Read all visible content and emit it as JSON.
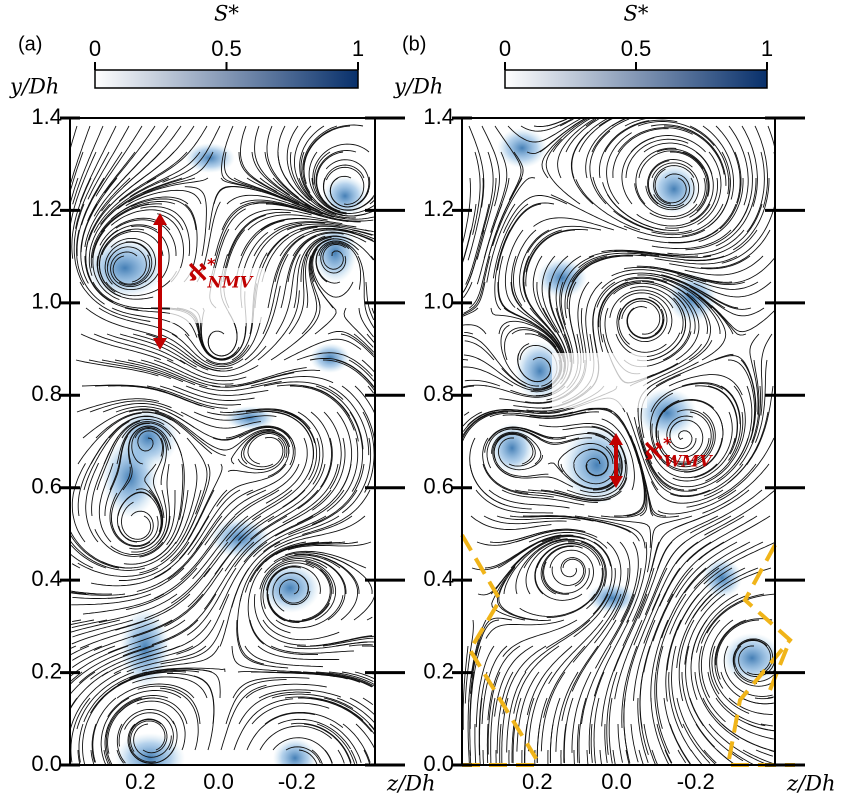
{
  "chart_data": [
    {
      "type": "streamline",
      "panel_label": "(a)",
      "ylabel": "y/Dh",
      "xlabel": "z/Dh",
      "xlim": [
        0.38,
        -0.4
      ],
      "ylim": [
        0,
        1.4
      ],
      "xticks": [
        {
          "value": 0.2,
          "label": "0.2"
        },
        {
          "value": 0,
          "label": "0.0"
        },
        {
          "value": -0.2,
          "label": "-0.2"
        }
      ],
      "yticks": [
        {
          "value": 0,
          "label": "0.0"
        },
        {
          "value": 0.2,
          "label": "0.2"
        },
        {
          "value": 0.4,
          "label": "0.4"
        },
        {
          "value": 0.6,
          "label": "0.6"
        },
        {
          "value": 0.8,
          "label": "0.8"
        },
        {
          "value": 1,
          "label": "1.0"
        },
        {
          "value": 1.2,
          "label": "1.2"
        },
        {
          "value": 1.4,
          "label": "1.4"
        }
      ],
      "colorbar": {
        "label": "S*",
        "clim": [
          0,
          1
        ],
        "ticks": [
          0,
          0.5,
          1
        ],
        "cmap": [
          "#ffffff",
          "#08306b"
        ]
      },
      "annotation": {
        "symbol": "ℵ",
        "sup": "*",
        "sub": "NMV",
        "color": "#c00000"
      }
    },
    {
      "type": "streamline",
      "panel_label": "(b)",
      "ylabel": "y/Dh",
      "xlabel": "z/Dh",
      "xlim": [
        0.39,
        -0.4
      ],
      "ylim": [
        0,
        1.4
      ],
      "xticks": [
        {
          "value": 0.2,
          "label": "0.2"
        },
        {
          "value": 0,
          "label": "0.0"
        },
        {
          "value": -0.2,
          "label": "-0.2"
        }
      ],
      "yticks": [
        {
          "value": 0,
          "label": "0.0"
        },
        {
          "value": 0.2,
          "label": "0.2"
        },
        {
          "value": 0.4,
          "label": "0.4"
        },
        {
          "value": 0.6,
          "label": "0.6"
        },
        {
          "value": 0.8,
          "label": "0.8"
        },
        {
          "value": 1,
          "label": "1.0"
        },
        {
          "value": 1.2,
          "label": "1.2"
        },
        {
          "value": 1.4,
          "label": "1.4"
        }
      ],
      "colorbar": {
        "label": "S*",
        "clim": [
          0,
          1
        ],
        "ticks": [
          0,
          0.5,
          1
        ],
        "cmap": [
          "#ffffff",
          "#08306b"
        ]
      },
      "annotation": {
        "symbol": "ℵ",
        "sup": "*",
        "sub": "WMV",
        "color": "#c00000"
      }
    }
  ]
}
